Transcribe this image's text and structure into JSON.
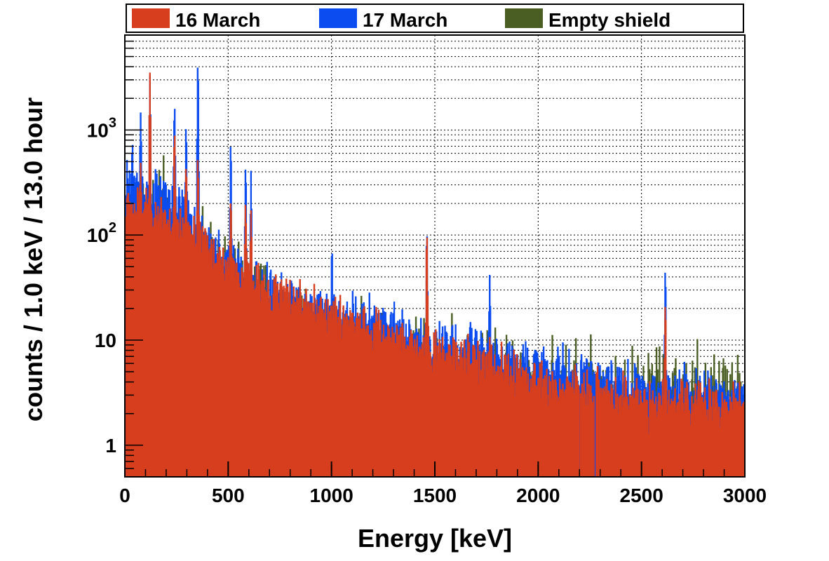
{
  "chart_data": {
    "type": "line",
    "title": "",
    "xlabel": "Energy [keV]",
    "ylabel": "counts / 1.0 keV / 13.0 hour",
    "xlim": [
      0,
      3000
    ],
    "ylim": [
      0.5,
      8000
    ],
    "y_scale": "log",
    "grid": true,
    "legend_position": "top",
    "x_ticks": [
      {
        "value": 0,
        "label": "0"
      },
      {
        "value": 500,
        "label": "500"
      },
      {
        "value": 1000,
        "label": "1000"
      },
      {
        "value": 1500,
        "label": "1500"
      },
      {
        "value": 2000,
        "label": "2000"
      },
      {
        "value": 2500,
        "label": "2500"
      },
      {
        "value": 3000,
        "label": "3000"
      }
    ],
    "y_ticks": [
      {
        "value": 1,
        "label": "1",
        "sup": ""
      },
      {
        "value": 10,
        "label": "10",
        "sup": ""
      },
      {
        "value": 100,
        "label": "10",
        "sup": "2"
      },
      {
        "value": 1000,
        "label": "10",
        "sup": "3"
      }
    ],
    "series": [
      {
        "name": "Empty shield",
        "color": "#4a5e23",
        "continuum": [
          [
            10,
            160
          ],
          [
            100,
            140
          ],
          [
            200,
            110
          ],
          [
            300,
            75
          ],
          [
            400,
            45
          ],
          [
            500,
            32
          ],
          [
            600,
            24
          ],
          [
            700,
            18
          ],
          [
            800,
            14
          ],
          [
            1000,
            10
          ],
          [
            1200,
            7.5
          ],
          [
            1500,
            5
          ],
          [
            2000,
            3.5
          ],
          [
            2500,
            2.8
          ],
          [
            3000,
            2.5
          ]
        ],
        "noise": 0.55,
        "peaks": [
          [
            75,
            280
          ],
          [
            186,
            200
          ],
          [
            239,
            320
          ],
          [
            295,
            180
          ],
          [
            352,
            220
          ],
          [
            511,
            160
          ],
          [
            583,
            120
          ],
          [
            609,
            90
          ],
          [
            1460,
            50
          ],
          [
            2614,
            12
          ]
        ]
      },
      {
        "name": "17 March",
        "color": "#0a4cf0",
        "continuum": [
          [
            10,
            320
          ],
          [
            100,
            260
          ],
          [
            200,
            230
          ],
          [
            300,
            160
          ],
          [
            400,
            80
          ],
          [
            500,
            55
          ],
          [
            600,
            38
          ],
          [
            700,
            30
          ],
          [
            800,
            24
          ],
          [
            1000,
            18
          ],
          [
            1200,
            15
          ],
          [
            1500,
            9
          ],
          [
            1800,
            7
          ],
          [
            2000,
            5.5
          ],
          [
            2500,
            3.5
          ],
          [
            3000,
            2.8
          ]
        ],
        "noise": 0.25,
        "peaks": [
          [
            35,
            450
          ],
          [
            75,
            1200
          ],
          [
            120,
            3000
          ],
          [
            239,
            1500
          ],
          [
            295,
            900
          ],
          [
            352,
            4200
          ],
          [
            511,
            700
          ],
          [
            583,
            420
          ],
          [
            609,
            350
          ],
          [
            1001,
            60
          ],
          [
            1460,
            100
          ],
          [
            1764,
            35
          ],
          [
            2614,
            45
          ]
        ]
      },
      {
        "name": "16 March",
        "color": "#d63e1e",
        "continuum": [
          [
            10,
            180
          ],
          [
            100,
            160
          ],
          [
            200,
            140
          ],
          [
            300,
            100
          ],
          [
            400,
            70
          ],
          [
            500,
            48
          ],
          [
            600,
            36
          ],
          [
            700,
            28
          ],
          [
            800,
            23
          ],
          [
            1000,
            17
          ],
          [
            1200,
            13
          ],
          [
            1500,
            8
          ],
          [
            2000,
            4
          ],
          [
            2500,
            2.6
          ],
          [
            3000,
            2.2
          ]
        ],
        "noise": 0.25,
        "peaks": [
          [
            75,
            320
          ],
          [
            120,
            3300
          ],
          [
            239,
            850
          ],
          [
            295,
            350
          ],
          [
            352,
            420
          ],
          [
            511,
            180
          ],
          [
            583,
            160
          ],
          [
            609,
            140
          ],
          [
            1460,
            95
          ],
          [
            2614,
            20
          ]
        ]
      }
    ]
  }
}
